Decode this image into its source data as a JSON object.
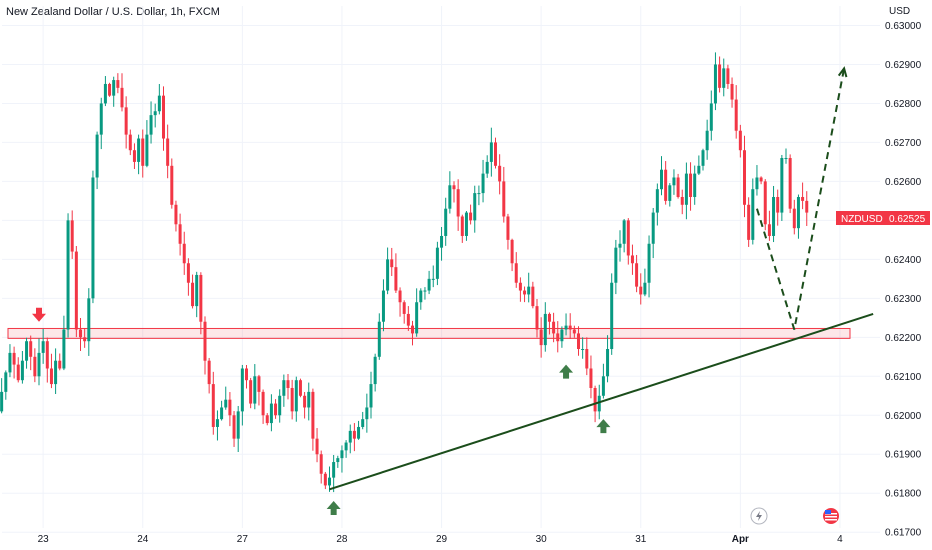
{
  "header": {
    "title": "New Zealand Dollar / U.S. Dollar, 1h, FXCM",
    "currency": "USD"
  },
  "colors": {
    "up": "#089981",
    "down": "#f23645",
    "support": "#f23645",
    "trendline": "#1b4d1b",
    "arrow_up": "#3f7d49",
    "arrow_down": "#f23645"
  },
  "price_label": {
    "symbol": "NZDUSD",
    "value": "0.62525"
  },
  "chart_data": {
    "type": "candlestick",
    "title": "New Zealand Dollar / U.S. Dollar, 1h, FXCM",
    "xlabel": "",
    "ylabel": "USD",
    "ylim": [
      0.6168,
      0.6305
    ],
    "y_ticks": [
      "0.63000",
      "0.62900",
      "0.62800",
      "0.62700",
      "0.62600",
      "0.62500",
      "0.62400",
      "0.62300",
      "0.62200",
      "0.62100",
      "0.62000",
      "0.61900",
      "0.61800",
      "0.61700"
    ],
    "x_ticks": [
      {
        "label": "23",
        "index": 11,
        "bold": false
      },
      {
        "label": "24",
        "index": 35,
        "bold": false
      },
      {
        "label": "27",
        "index": 59,
        "bold": false
      },
      {
        "label": "28",
        "index": 83,
        "bold": false
      },
      {
        "label": "29",
        "index": 107,
        "bold": false
      },
      {
        "label": "30",
        "index": 131,
        "bold": false
      },
      {
        "label": "31",
        "index": 155,
        "bold": false
      },
      {
        "label": "Apr",
        "index": 179,
        "bold": true
      },
      {
        "label": "4",
        "index": 203,
        "bold": false
      }
    ],
    "close": [
      0.6201,
      0.6206,
      0.6211,
      0.6216,
      0.6213,
      0.6209,
      0.6214,
      0.6219,
      0.6215,
      0.621,
      0.6216,
      0.6219,
      0.6212,
      0.6208,
      0.6214,
      0.6212,
      0.6222,
      0.625,
      0.6242,
      0.6222,
      0.622,
      0.6219,
      0.623,
      0.6261,
      0.6272,
      0.628,
      0.6285,
      0.6282,
      0.6286,
      0.6284,
      0.6279,
      0.6272,
      0.6268,
      0.6265,
      0.6271,
      0.6264,
      0.6272,
      0.6277,
      0.6278,
      0.6282,
      0.6271,
      0.6264,
      0.6254,
      0.6249,
      0.6244,
      0.6239,
      0.6234,
      0.6228,
      0.6236,
      0.6224,
      0.6214,
      0.6208,
      0.6197,
      0.6199,
      0.6202,
      0.6204,
      0.62,
      0.6194,
      0.6201,
      0.6212,
      0.6209,
      0.6203,
      0.621,
      0.6206,
      0.62,
      0.6198,
      0.6203,
      0.62,
      0.6205,
      0.6209,
      0.6207,
      0.6201,
      0.6209,
      0.6205,
      0.6202,
      0.6206,
      0.6194,
      0.619,
      0.6185,
      0.6182,
      0.6184,
      0.6188,
      0.6189,
      0.6191,
      0.6193,
      0.6196,
      0.6194,
      0.6197,
      0.6199,
      0.6202,
      0.6208,
      0.6215,
      0.6224,
      0.6232,
      0.624,
      0.6238,
      0.6232,
      0.6229,
      0.6226,
      0.6223,
      0.6221,
      0.6229,
      0.6232,
      0.6232,
      0.6235,
      0.6235,
      0.6243,
      0.6246,
      0.6253,
      0.6259,
      0.6258,
      0.6251,
      0.6246,
      0.6252,
      0.625,
      0.6257,
      0.6257,
      0.6262,
      0.6265,
      0.627,
      0.6264,
      0.626,
      0.6251,
      0.6245,
      0.6239,
      0.6234,
      0.6232,
      0.6231,
      0.6233,
      0.6228,
      0.6222,
      0.6218,
      0.6226,
      0.6224,
      0.6221,
      0.6219,
      0.6222,
      0.6223,
      0.6222,
      0.6221,
      0.6217,
      0.6217,
      0.6212,
      0.6207,
      0.6201,
      0.6205,
      0.621,
      0.6217,
      0.6234,
      0.6243,
      0.6244,
      0.625,
      0.6241,
      0.6239,
      0.6233,
      0.6231,
      0.6234,
      0.6244,
      0.6252,
      0.6258,
      0.6263,
      0.6255,
      0.6259,
      0.6261,
      0.6256,
      0.6254,
      0.6262,
      0.6256,
      0.6262,
      0.6264,
      0.6268,
      0.6273,
      0.628,
      0.629,
      0.6284,
      0.6289,
      0.6285,
      0.6281,
      0.6273,
      0.6268,
      0.6254,
      0.6245,
      0.6258,
      0.6261,
      0.626,
      0.6249,
      0.6246,
      0.6256,
      0.6252,
      0.6266,
      0.6266,
      0.6253,
      0.6248,
      0.6256,
      0.6255,
      0.6252
    ],
    "support_zone": [
      0.62205,
      0.62215
    ],
    "trendline": [
      {
        "index": 80,
        "value": 0.6181
      },
      {
        "index": 211,
        "value": 0.6226
      }
    ],
    "projection": [
      {
        "index": 183,
        "value": 0.6253
      },
      {
        "index": 192,
        "value": 0.6222
      },
      {
        "index": 204,
        "value": 0.6289
      }
    ],
    "markers": [
      {
        "type": "arrow-down",
        "index": 10,
        "value": 0.6224
      },
      {
        "type": "arrow-up",
        "index": 81,
        "value": 0.6178
      },
      {
        "type": "arrow-up",
        "index": 137,
        "value": 0.6213
      },
      {
        "type": "arrow-up",
        "index": 146,
        "value": 0.6199
      }
    ]
  }
}
